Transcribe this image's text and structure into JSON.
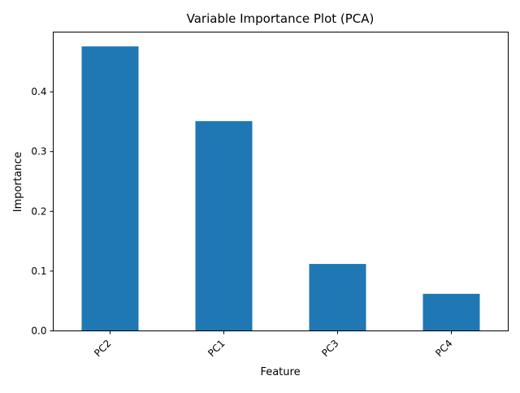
{
  "chart_data": {
    "type": "bar",
    "title": "Variable Importance Plot (PCA)",
    "xlabel": "Feature",
    "ylabel": "Importance",
    "categories": [
      "PC2",
      "PC1",
      "PC3",
      "PC4"
    ],
    "values": [
      0.476,
      0.351,
      0.112,
      0.062
    ],
    "ylim": [
      0,
      0.5
    ],
    "yticks": [
      "0.0",
      "0.1",
      "0.2",
      "0.3",
      "0.4"
    ],
    "bar_color": "#1f77b4",
    "grid": false,
    "legend": false,
    "x_tick_rotation_deg": 45
  }
}
